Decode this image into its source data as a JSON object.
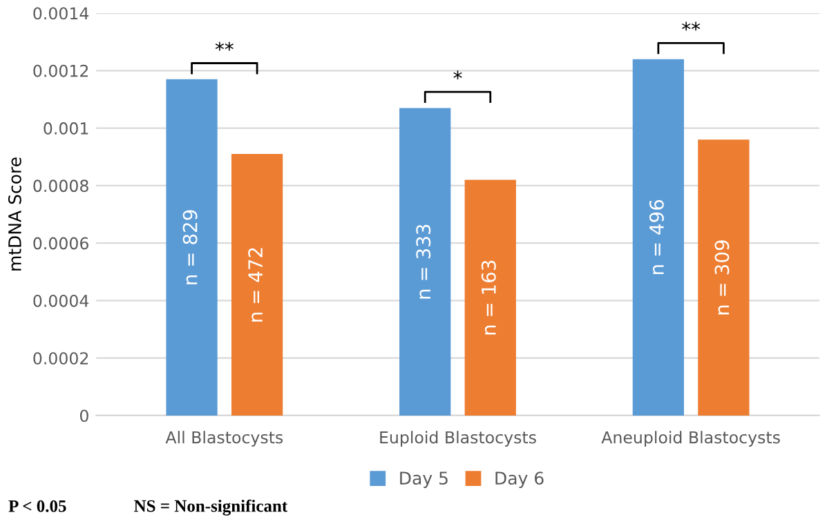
{
  "chart_data": {
    "type": "bar",
    "ylabel": "mtDNA Score",
    "categories": [
      "All Blastocysts",
      "Euploid Blastocysts",
      "Aneuploid Blastocysts"
    ],
    "series": [
      {
        "name": "Day 5",
        "color": "#5b9bd5",
        "values": [
          0.00117,
          0.00107,
          0.00124
        ]
      },
      {
        "name": "Day 6",
        "color": "#ed7d31",
        "values": [
          0.00091,
          0.00082,
          0.00096
        ]
      }
    ],
    "ylim": [
      0,
      0.0014
    ],
    "yticks": [
      0,
      0.0002,
      0.0004,
      0.0006,
      0.0008,
      0.001,
      0.0012,
      0.0014
    ],
    "grid": "y",
    "legend": "bottom",
    "annotations": [
      "**",
      "*",
      "**",
      "n = 829",
      "n = 333",
      "n = 496",
      "n = 472",
      "n = 163",
      "n = 309",
      "P < 0.05",
      "NS = Non-significant"
    ]
  }
}
